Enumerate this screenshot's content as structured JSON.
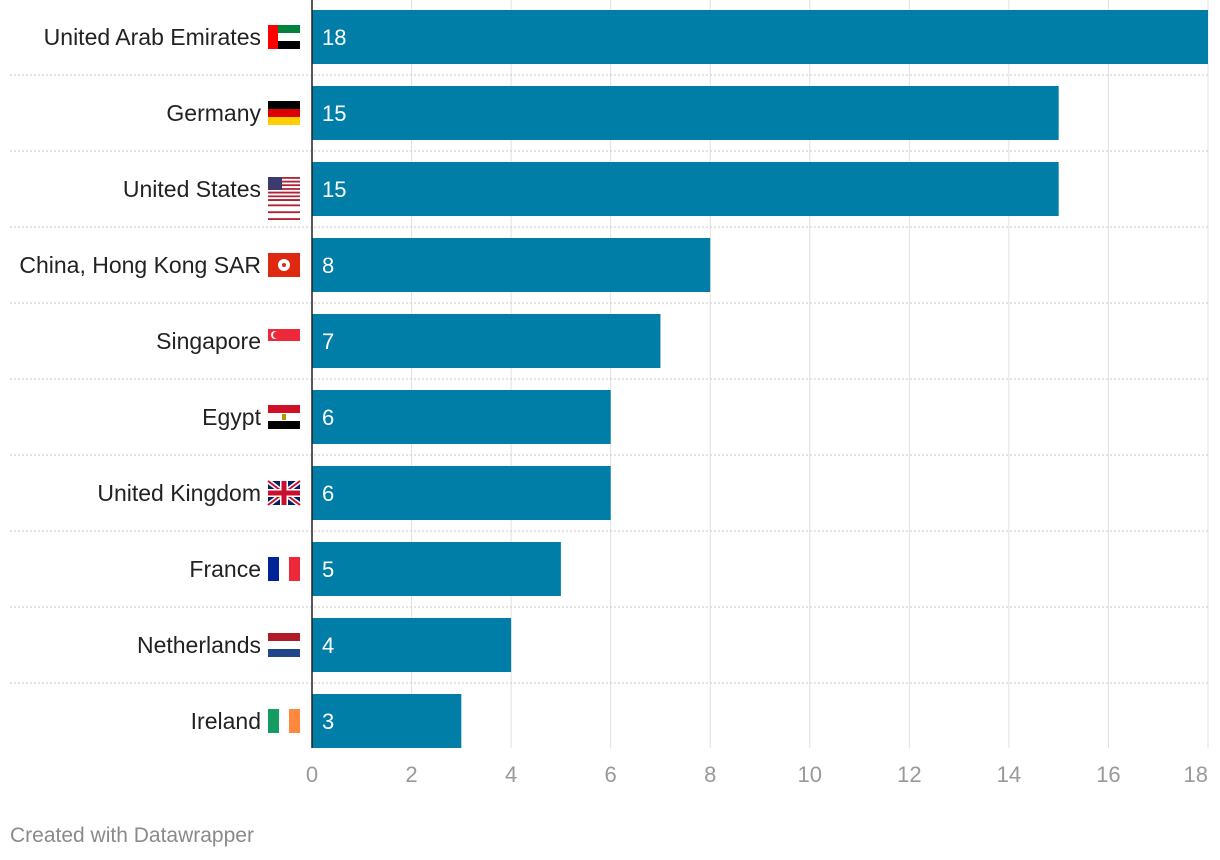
{
  "chart_data": {
    "type": "bar",
    "orientation": "horizontal",
    "categories": [
      "United Arab Emirates",
      "Germany",
      "United States",
      "China, Hong Kong SAR",
      "Singapore",
      "Egypt",
      "United Kingdom",
      "France",
      "Netherlands",
      "Ireland"
    ],
    "flags": [
      "uae",
      "germany",
      "usa",
      "hongkong",
      "singapore",
      "egypt",
      "uk",
      "france",
      "netherlands",
      "ireland"
    ],
    "values": [
      18,
      15,
      15,
      8,
      7,
      6,
      6,
      5,
      4,
      3
    ],
    "xlim": [
      0,
      18
    ],
    "ticks": [
      0,
      2,
      4,
      6,
      8,
      10,
      12,
      14,
      16,
      18
    ],
    "grid": true,
    "bar_color": "#007ea7",
    "label_color": "#ffffff",
    "tick_color": "#999999",
    "title": "",
    "xlabel": "",
    "ylabel": ""
  },
  "footer": {
    "credit": "Created with Datawrapper"
  }
}
